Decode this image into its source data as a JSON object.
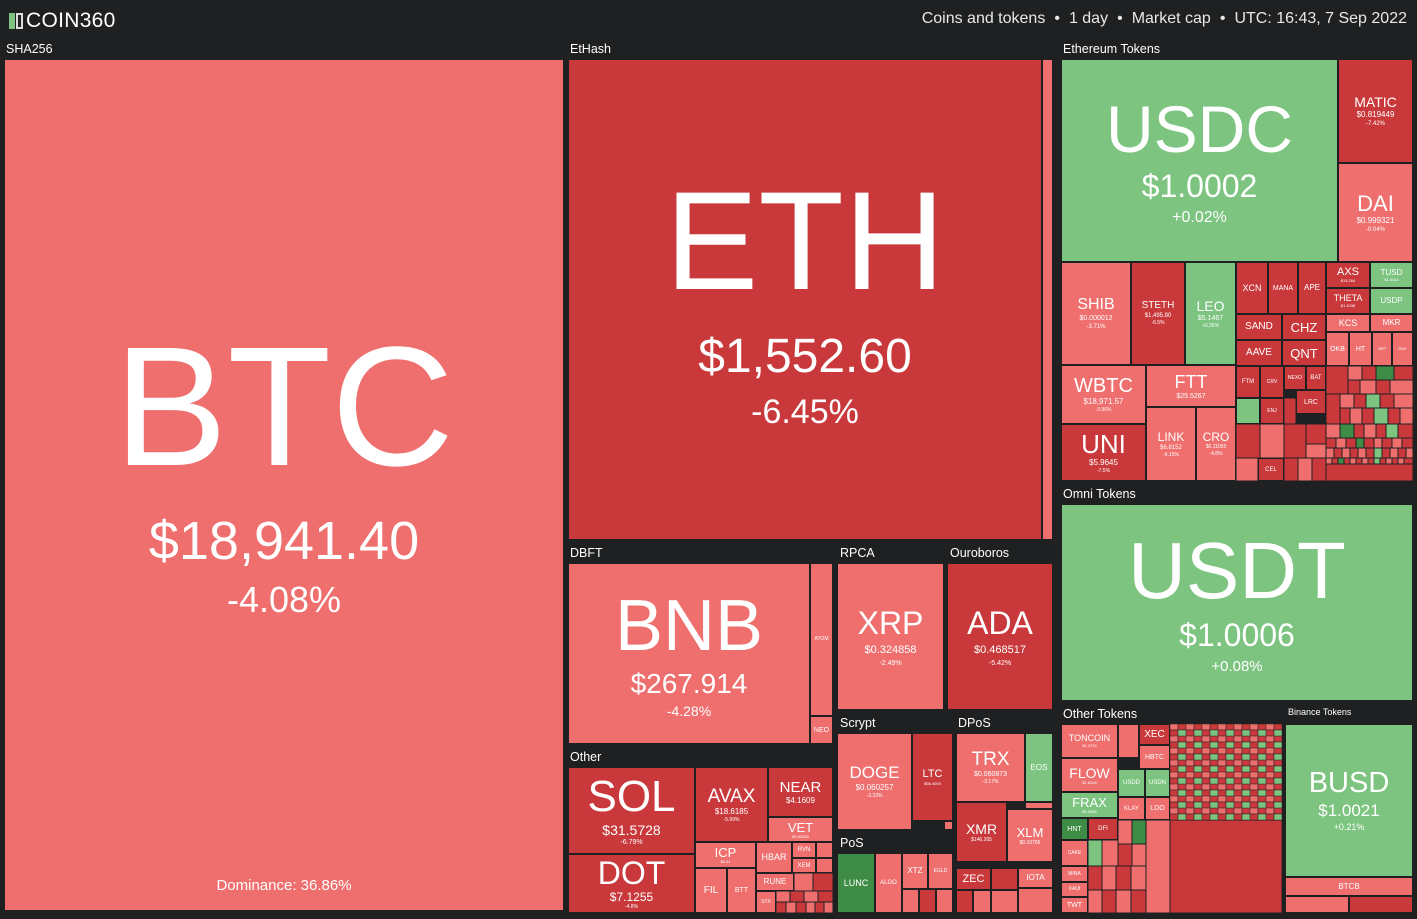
{
  "header": {
    "logo_text": "COIN360",
    "filter_type": "Coins and tokens",
    "period": "1 day",
    "metric": "Market cap",
    "time": "UTC: 16:43, 7 Sep 2022"
  },
  "groups": {
    "sha256": "SHA256",
    "ethash": "EtHash",
    "ethereum_tokens": "Ethereum Tokens",
    "dbft": "DBFT",
    "rpca": "RPCA",
    "ouroboros": "Ouroboros",
    "other": "Other",
    "omni_tokens": "Omni Tokens",
    "other_tokens": "Other Tokens",
    "binance_tokens": "Binance Tokens",
    "scrypt": "Scrypt",
    "dpos": "DPoS",
    "pos": "PoS"
  },
  "colors": {
    "bg": "#1e2021",
    "red": "#ee6f6e",
    "dark_red": "#c9393b",
    "green": "#7cc47f",
    "dark_green": "#3f8c47"
  },
  "coins": {
    "btc": {
      "symbol": "BTC",
      "price": "$18,941.40",
      "change": "-4.08%",
      "dominance": "Dominance: 36.86%"
    },
    "eth": {
      "symbol": "ETH",
      "price": "$1,552.60",
      "change": "-6.45%"
    },
    "usdc": {
      "symbol": "USDC",
      "price": "$1.0002",
      "change": "+0.02%"
    },
    "matic": {
      "symbol": "MATIC",
      "price": "$0.819449",
      "change": "-7.42%"
    },
    "dai": {
      "symbol": "DAI",
      "price": "$0.999321",
      "change": "-0.04%"
    },
    "shib": {
      "symbol": "SHIB",
      "price": "$0.000012",
      "change": "-3.71%"
    },
    "steth": {
      "symbol": "STETH",
      "price": "$1,495.80",
      "change": "-6.5%"
    },
    "leo": {
      "symbol": "LEO",
      "price": "$5.1467",
      "change": "+0.35%"
    },
    "wbtc": {
      "symbol": "WBTC",
      "price": "$18,971.57",
      "change": "-3.96%"
    },
    "ftt": {
      "symbol": "FTT",
      "price": "$25.5267",
      "change": "-3.5%"
    },
    "uni": {
      "symbol": "UNI",
      "price": "$5.9645",
      "change": "-7.5%"
    },
    "link": {
      "symbol": "LINK",
      "price": "$6.8152",
      "change": "-6.15%"
    },
    "cro": {
      "symbol": "CRO",
      "price": "$0.11055",
      "change": "-4.8%"
    },
    "xcn": {
      "symbol": "XCN"
    },
    "mana": {
      "symbol": "MANA"
    },
    "ape": {
      "symbol": "APE"
    },
    "axs": {
      "symbol": "AXS",
      "price": "$13.264"
    },
    "tusd": {
      "symbol": "TUSD",
      "price": "$1.0011"
    },
    "theta": {
      "symbol": "THETA",
      "price": "$1.1036"
    },
    "usdp": {
      "symbol": "USDP"
    },
    "sand": {
      "symbol": "SAND"
    },
    "chz": {
      "symbol": "CHZ"
    },
    "kcs": {
      "symbol": "KCS"
    },
    "mkr": {
      "symbol": "MKR"
    },
    "aave": {
      "symbol": "AAVE"
    },
    "qnt": {
      "symbol": "QNT"
    },
    "okb": {
      "symbol": "OKB"
    },
    "ht": {
      "symbol": "HT"
    },
    "gt": {
      "symbol": "GRT"
    },
    "snx": {
      "symbol": "SNX"
    },
    "ftm": {
      "symbol": "FTM"
    },
    "crv": {
      "symbol": "CRV"
    },
    "nexo": {
      "symbol": "NEXO"
    },
    "bat": {
      "symbol": "BAT"
    },
    "ens": {
      "symbol": "ENJ"
    },
    "lrc": {
      "symbol": "LRC"
    },
    "cel": {
      "symbol": "CEL"
    },
    "bnb": {
      "symbol": "BNB",
      "price": "$267.914",
      "change": "-4.28%"
    },
    "atom": {
      "symbol": "ATOM"
    },
    "neo": {
      "symbol": "NEO"
    },
    "xrp": {
      "symbol": "XRP",
      "price": "$0.324858",
      "change": "-2.49%"
    },
    "ada": {
      "symbol": "ADA",
      "price": "$0.468517",
      "change": "-5.42%"
    },
    "usdt": {
      "symbol": "USDT",
      "price": "$1.0006",
      "change": "+0.08%"
    },
    "sol": {
      "symbol": "SOL",
      "price": "$31.5728",
      "change": "-6.79%"
    },
    "dot": {
      "symbol": "DOT",
      "price": "$7.1255",
      "change": "-4.8%"
    },
    "avax": {
      "symbol": "AVAX",
      "price": "$18.6185",
      "change": "-5.99%"
    },
    "near": {
      "symbol": "NEAR",
      "price": "$4.1609"
    },
    "vet": {
      "symbol": "VET",
      "price": "$0.02330"
    },
    "icp": {
      "symbol": "ICP",
      "price": "$6.31"
    },
    "hbar": {
      "symbol": "HBAR"
    },
    "rvn": {
      "symbol": "RVN"
    },
    "rune": {
      "symbol": "RUNE"
    },
    "xem": {
      "symbol": "XEM"
    },
    "fil": {
      "symbol": "FIL"
    },
    "btt": {
      "symbol": "BTT"
    },
    "stx": {
      "symbol": "STX"
    },
    "doge": {
      "symbol": "DOGE",
      "price": "$0.060257",
      "change": "-3.33%"
    },
    "ltc": {
      "symbol": "LTC",
      "price": "$56.4000"
    },
    "trx": {
      "symbol": "TRX",
      "price": "$0.060873",
      "change": "-3.17%"
    },
    "eos": {
      "symbol": "EOS"
    },
    "xmr": {
      "symbol": "XMR",
      "price": "$146.265"
    },
    "xlm": {
      "symbol": "XLM",
      "price": "$0.10766"
    },
    "zec": {
      "symbol": "ZEC"
    },
    "iota": {
      "symbol": "IOTA"
    },
    "lunc": {
      "symbol": "LUNC"
    },
    "algo": {
      "symbol": "ALGO"
    },
    "xtz": {
      "symbol": "XTZ"
    },
    "eglo": {
      "symbol": "EGLD"
    },
    "toncoin": {
      "symbol": "TONCOIN",
      "price": "$1.4733"
    },
    "xec": {
      "symbol": "XEC"
    },
    "hbtc": {
      "symbol": "HBTC"
    },
    "flow": {
      "symbol": "FLOW",
      "price": "$1.6106"
    },
    "usdd": {
      "symbol": "USDD"
    },
    "usdn": {
      "symbol": "USDN"
    },
    "frax": {
      "symbol": "FRAX",
      "price": "$0.9966"
    },
    "klay": {
      "symbol": "KLAY"
    },
    "ldo": {
      "symbol": "LDO"
    },
    "hnt": {
      "symbol": "HNT"
    },
    "dfi": {
      "symbol": "DFI"
    },
    "cake": {
      "symbol": "CAKE"
    },
    "mina": {
      "symbol": "MINA"
    },
    "xaut": {
      "symbol": "XAUt"
    },
    "twt": {
      "symbol": "TWT"
    },
    "busd": {
      "symbol": "BUSD",
      "price": "$1.0021",
      "change": "+0.21%"
    },
    "btcb": {
      "symbol": "BTCB"
    }
  }
}
